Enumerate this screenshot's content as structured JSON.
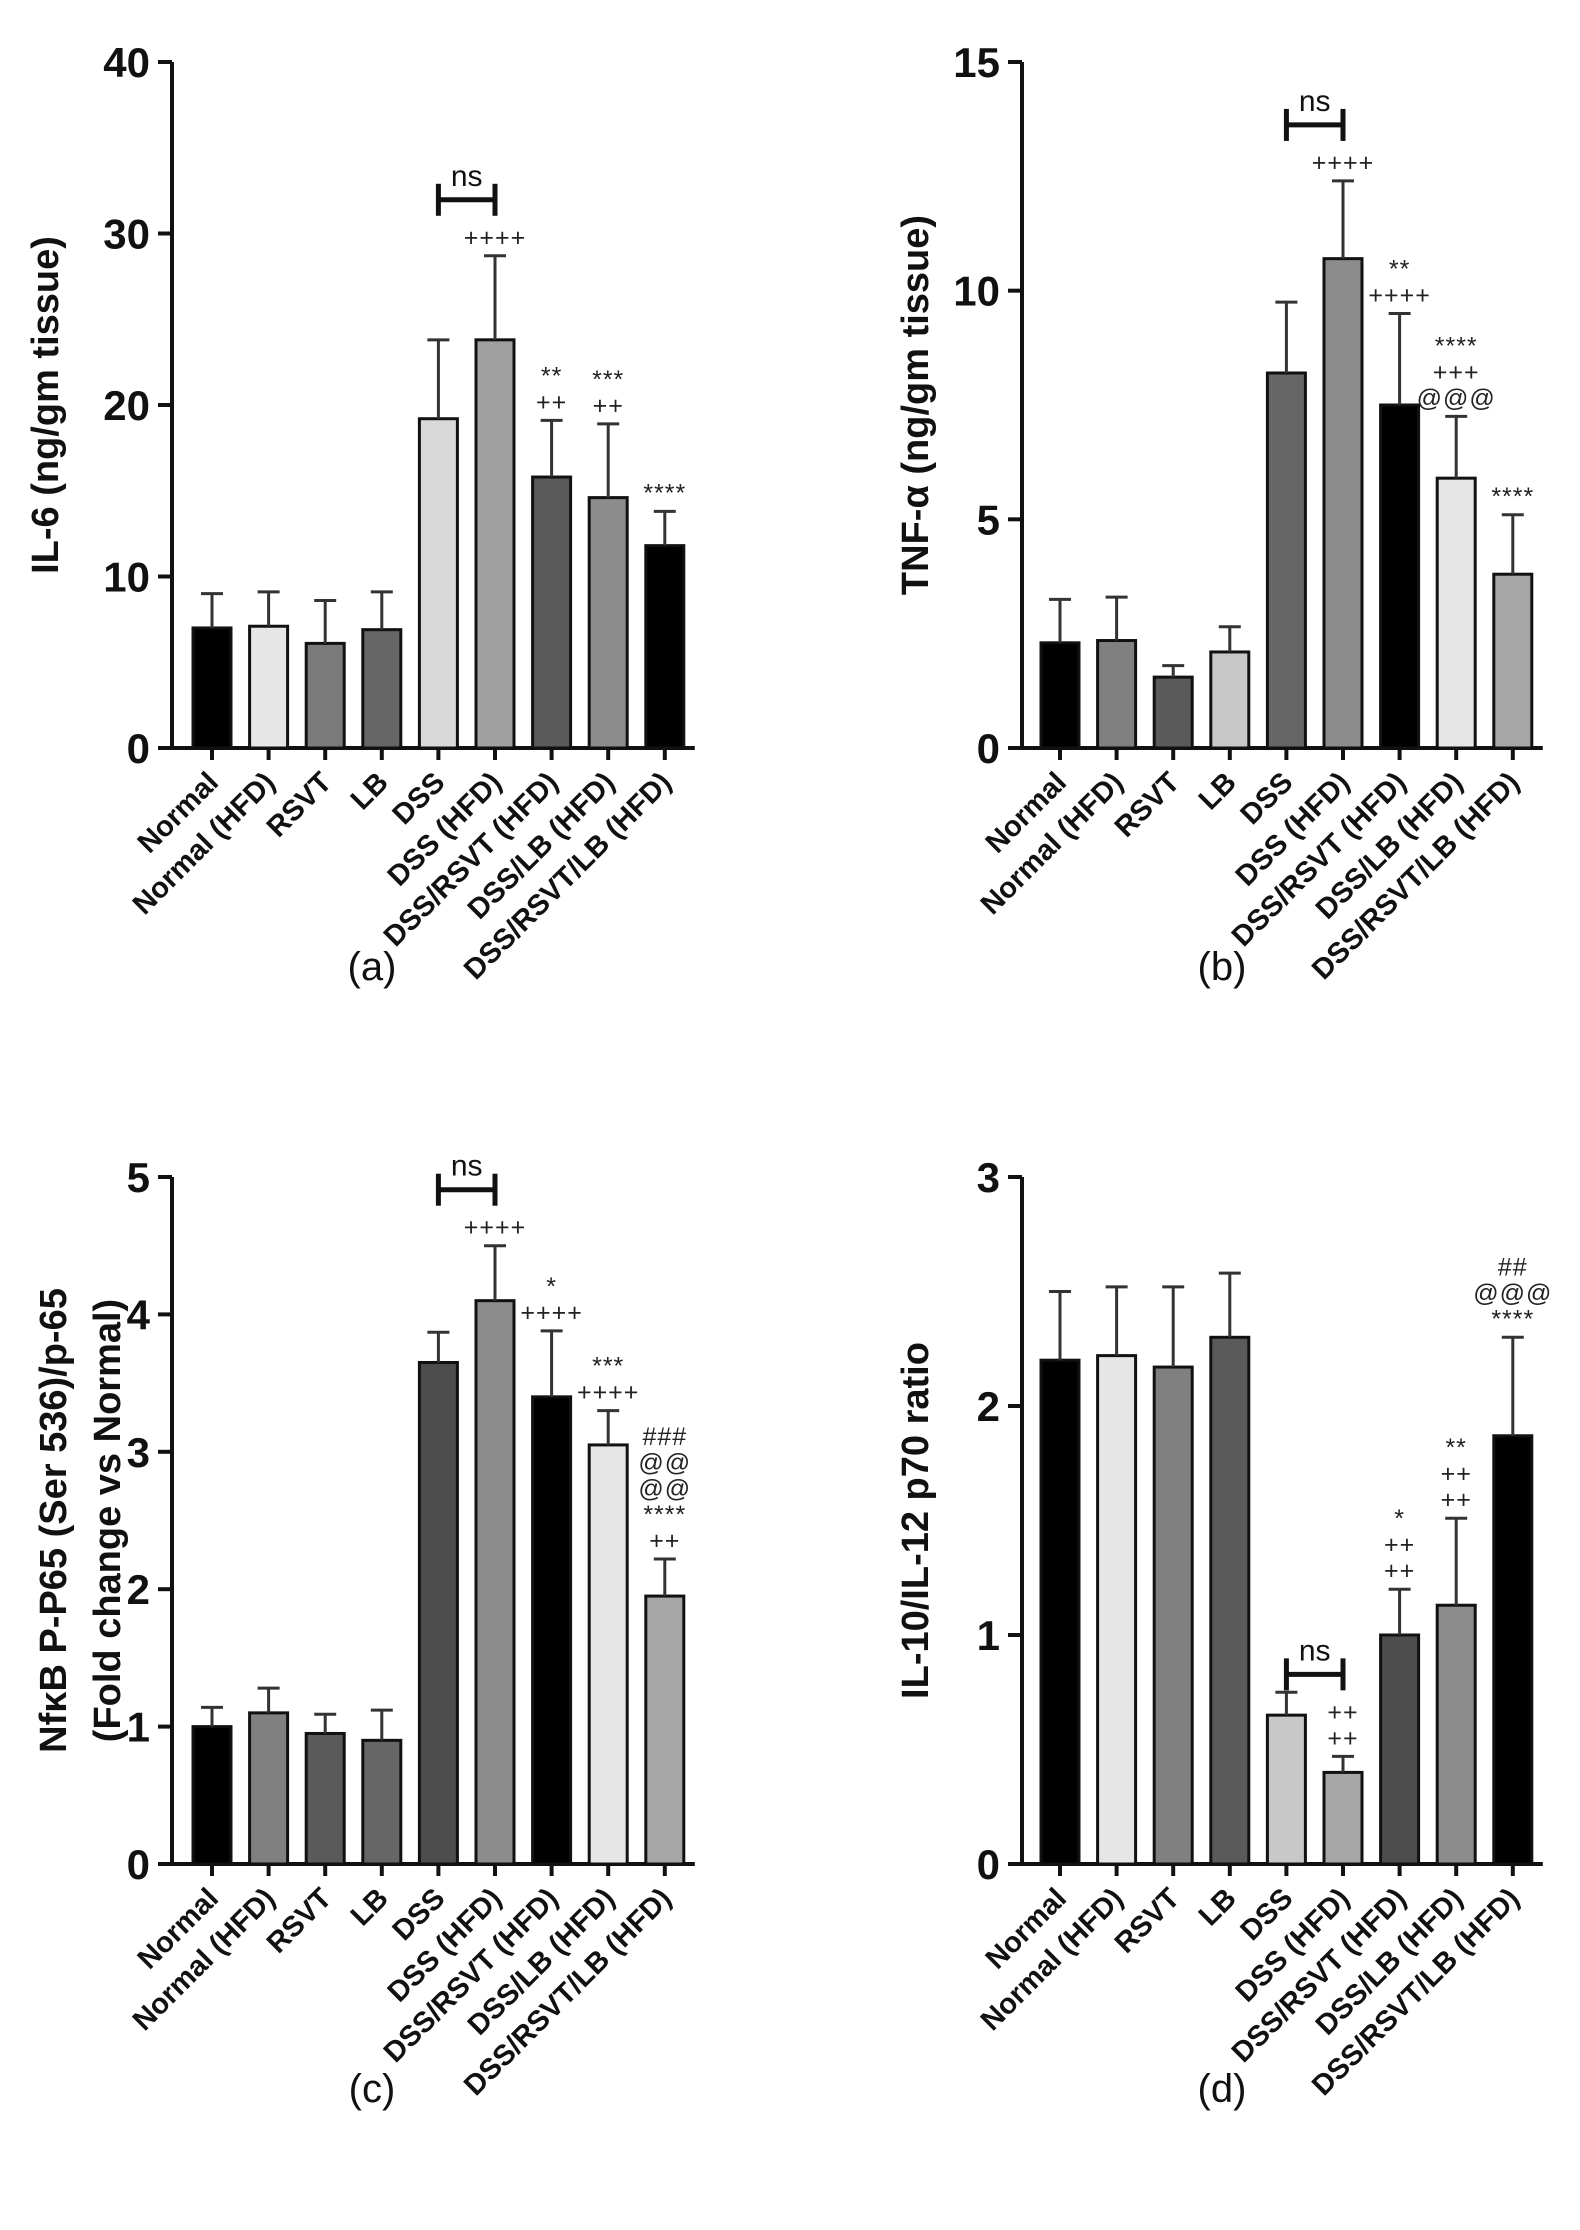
{
  "chart_data": [
    {
      "type": "bar",
      "panel_label": "(a)",
      "ylabel": "IL-6 (ng/gm tissue)",
      "ylim": [
        0,
        40
      ],
      "yticks": [
        0,
        10,
        20,
        30,
        40
      ],
      "categories": [
        "Normal",
        "Normal (HFD)",
        "RSVT",
        "LB",
        "DSS",
        "DSS (HFD)",
        "DSS/RSVT (HFD)",
        "DSS/LB (HFD)",
        "DSS/RSVT/LB (HFD)"
      ],
      "values": [
        7.0,
        7.1,
        6.1,
        6.9,
        19.2,
        23.8,
        15.8,
        14.6,
        11.8
      ],
      "errors": [
        2.0,
        2.0,
        2.5,
        2.2,
        4.6,
        4.9,
        3.3,
        4.3,
        2.0
      ],
      "bar_colors": [
        "#000000",
        "#e6e6e6",
        "#7a7a7a",
        "#666666",
        "#d9d9d9",
        "#a0a0a0",
        "#5a5a5a",
        "#8c8c8c",
        "#000000"
      ],
      "ns_bracket": {
        "label": "ns",
        "between": [
          4,
          5
        ]
      },
      "annotations": [
        {
          "bar": 5,
          "lines": [
            "++++"
          ]
        },
        {
          "bar": 6,
          "lines": [
            "**",
            "++"
          ]
        },
        {
          "bar": 7,
          "lines": [
            "***",
            "++"
          ]
        },
        {
          "bar": 8,
          "lines": [
            "****"
          ]
        }
      ]
    },
    {
      "type": "bar",
      "panel_label": "(b)",
      "ylabel": "TNF-α (ng/gm tissue)",
      "ylim": [
        0,
        15
      ],
      "yticks": [
        0,
        5,
        10,
        15
      ],
      "categories": [
        "Normal",
        "Normal (HFD)",
        "RSVT",
        "LB",
        "DSS",
        "DSS (HFD)",
        "DSS/RSVT (HFD)",
        "DSS/LB (HFD)",
        "DSS/RSVT/LB (HFD)"
      ],
      "values": [
        2.3,
        2.35,
        1.55,
        2.1,
        8.2,
        10.7,
        7.5,
        5.9,
        3.8
      ],
      "errors": [
        0.95,
        0.95,
        0.25,
        0.55,
        1.55,
        1.7,
        2.0,
        1.35,
        1.3
      ],
      "bar_colors": [
        "#000000",
        "#808080",
        "#5a5a5a",
        "#c8c8c8",
        "#666666",
        "#8c8c8c",
        "#000000",
        "#e6e6e6",
        "#a6a6a6"
      ],
      "ns_bracket": {
        "label": "ns",
        "between": [
          4,
          5
        ]
      },
      "annotations": [
        {
          "bar": 5,
          "lines": [
            "++++"
          ]
        },
        {
          "bar": 6,
          "lines": [
            "**",
            "++++"
          ]
        },
        {
          "bar": 7,
          "lines": [
            "****",
            "+++",
            "@@@"
          ]
        },
        {
          "bar": 8,
          "lines": [
            "****"
          ]
        }
      ]
    },
    {
      "type": "bar",
      "panel_label": "(c)",
      "ylabel": "NfκB P-P65 (Ser 536)/p-65",
      "ylabel2": "(Fold change vs Normal)",
      "ylim": [
        0,
        5
      ],
      "yticks": [
        0,
        1,
        2,
        3,
        4,
        5
      ],
      "categories": [
        "Normal",
        "Normal (HFD)",
        "RSVT",
        "LB",
        "DSS",
        "DSS (HFD)",
        "DSS/RSVT (HFD)",
        "DSS/LB (HFD)",
        "DSS/RSVT/LB (HFD)"
      ],
      "values": [
        1.0,
        1.1,
        0.95,
        0.9,
        3.65,
        4.1,
        3.4,
        3.05,
        1.95
      ],
      "errors": [
        0.14,
        0.18,
        0.14,
        0.22,
        0.22,
        0.4,
        0.48,
        0.25,
        0.27
      ],
      "bar_colors": [
        "#000000",
        "#808080",
        "#5a5a5a",
        "#666666",
        "#4d4d4d",
        "#8c8c8c",
        "#000000",
        "#e6e6e6",
        "#a6a6a6"
      ],
      "ns_bracket": {
        "label": "ns",
        "between": [
          4,
          5
        ]
      },
      "annotations": [
        {
          "bar": 5,
          "lines": [
            "++++"
          ]
        },
        {
          "bar": 6,
          "lines": [
            "*",
            "++++"
          ]
        },
        {
          "bar": 7,
          "lines": [
            "***",
            "++++"
          ]
        },
        {
          "bar": 8,
          "lines": [
            "###",
            "@@",
            "@@",
            "****",
            "++"
          ]
        }
      ]
    },
    {
      "type": "bar",
      "panel_label": "(d)",
      "ylabel": "IL-10/IL-12 p70 ratio",
      "ylim": [
        0,
        3
      ],
      "yticks": [
        0,
        1,
        2,
        3
      ],
      "categories": [
        "Normal",
        "Normal (HFD)",
        "RSVT",
        "LB",
        "DSS",
        "DSS (HFD)",
        "DSS/RSVT (HFD)",
        "DSS/LB (HFD)",
        "DSS/RSVT/LB (HFD)"
      ],
      "values": [
        2.2,
        2.22,
        2.17,
        2.3,
        0.65,
        0.4,
        1.0,
        1.13,
        1.87
      ],
      "errors": [
        0.3,
        0.3,
        0.35,
        0.28,
        0.1,
        0.07,
        0.2,
        0.38,
        0.43
      ],
      "bar_colors": [
        "#000000",
        "#e6e6e6",
        "#808080",
        "#5a5a5a",
        "#c8c8c8",
        "#a6a6a6",
        "#4d4d4d",
        "#8c8c8c",
        "#000000"
      ],
      "ns_bracket": {
        "label": "ns",
        "between": [
          4,
          5
        ]
      },
      "annotations": [
        {
          "bar": 5,
          "lines": [
            "++",
            "++"
          ]
        },
        {
          "bar": 6,
          "lines": [
            "*",
            "++",
            "++"
          ]
        },
        {
          "bar": 7,
          "lines": [
            "**",
            "++",
            "++"
          ]
        },
        {
          "bar": 8,
          "lines": [
            "##",
            "@@@",
            "****"
          ]
        }
      ]
    }
  ]
}
